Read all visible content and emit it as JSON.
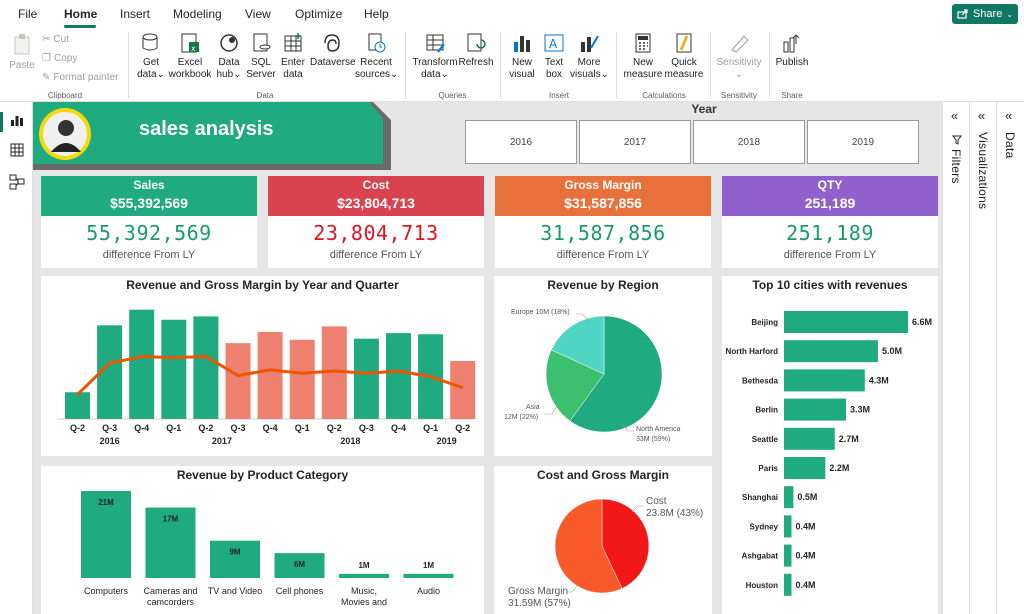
{
  "menu": [
    "File",
    "Home",
    "Insert",
    "Modeling",
    "View",
    "Optimize",
    "Help"
  ],
  "share_label": "Share",
  "ribbon": {
    "clipboard": {
      "paste": "Paste",
      "cut": "Cut",
      "copy": "Copy",
      "format_painter": "Format painter",
      "group": "Clipboard"
    },
    "data": {
      "get_data": [
        "Get",
        "data"
      ],
      "excel": [
        "Excel",
        "workbook"
      ],
      "hub": [
        "Data",
        "hub"
      ],
      "sql": [
        "SQL",
        "Server"
      ],
      "enter": [
        "Enter",
        "data"
      ],
      "dataverse": "Dataverse",
      "recent": [
        "Recent",
        "sources"
      ],
      "group": "Data"
    },
    "queries": {
      "transform": [
        "Transform",
        "data"
      ],
      "refresh": "Refresh",
      "group": "Queries"
    },
    "insert": {
      "new_visual": [
        "New",
        "visual"
      ],
      "text_box": [
        "Text",
        "box"
      ],
      "more_visuals": [
        "More",
        "visuals"
      ],
      "group": "Insert"
    },
    "calculations": {
      "new_measure": [
        "New",
        "measure"
      ],
      "quick_measure": [
        "Quick",
        "measure"
      ],
      "group": "Calculations"
    },
    "sensitivity": {
      "label": "Sensitivity",
      "group": "Sensitivity"
    },
    "share": {
      "publish": "Publish",
      "group": "Share"
    }
  },
  "panes": {
    "filters": "Filters",
    "visualizations": "Visualizations",
    "data": "Data"
  },
  "header": {
    "title": "sales analysis",
    "year_label": "Year",
    "years": [
      "2016",
      "2017",
      "2018",
      "2019"
    ]
  },
  "kpis": [
    {
      "label": "Sales",
      "value": "$55,392,569",
      "big": "55,392,569",
      "sub": "difference From LY",
      "color": "#1faa80",
      "bigcolor": "#1a9a6c"
    },
    {
      "label": "Cost",
      "value": "$23,804,713",
      "big": "23,804,713",
      "sub": "difference From LY",
      "color": "#d9434f",
      "bigcolor": "#e0141e"
    },
    {
      "label": "Gross Margin",
      "value": "$31,587,856",
      "big": "31,587,856",
      "sub": "difference From LY",
      "color": "#e8703a",
      "bigcolor": "#1a9a6c"
    },
    {
      "label": "QTY",
      "value": "251,189",
      "big": "251,189",
      "sub": "difference From LY",
      "color": "#9060cc",
      "bigcolor": "#1a9a6c"
    }
  ],
  "chart_data": [
    {
      "type": "bar",
      "title": "Revenue and Gross Margin by Year and Quarter",
      "categories": [
        "Q-2",
        "Q-3",
        "Q-4",
        "Q-1",
        "Q-2",
        "Q-3",
        "Q-4",
        "Q-1",
        "Q-2",
        "Q-3",
        "Q-4",
        "Q-1",
        "Q-2"
      ],
      "years": [
        {
          "label": "2016",
          "span": 3
        },
        {
          "label": "2017",
          "span": 4
        },
        {
          "label": "2018",
          "span": 4
        },
        {
          "label": "2019",
          "span": 2
        }
      ],
      "series": [
        {
          "values": [
            1.2,
            4.2,
            4.9,
            4.45,
            4.6,
            3.4,
            3.9,
            3.55,
            4.15,
            3.6,
            3.85,
            3.8,
            2.6
          ]
        },
        {
          "values": [
            1.1,
            2.5,
            2.8,
            2.75,
            2.8,
            1.95,
            2.2,
            2.05,
            2.15,
            2.05,
            2.15,
            1.9,
            1.4
          ]
        }
      ],
      "bar_colors": [
        "#1faa80",
        "#1faa80",
        "#1faa80",
        "#1faa80",
        "#1faa80",
        "#ee8070",
        "#ee8070",
        "#ee8070",
        "#ee8070",
        "#1faa80",
        "#1faa80",
        "#1faa80",
        "#ee8070"
      ],
      "line_color": "#ee5500",
      "ylim": [
        0,
        5.2
      ]
    },
    {
      "type": "pie",
      "title": "Revenue by Region",
      "slices": [
        {
          "label": "North America",
          "value": 33,
          "text": "North America 33M (59%)",
          "color": "#1faa80"
        },
        {
          "label": "Asia",
          "value": 12,
          "text": "Asia 12M (22%)",
          "color": "#3cc070"
        },
        {
          "label": "Europe",
          "value": 10,
          "text": "Europe 10M (18%)",
          "color": "#50d4c4"
        }
      ]
    },
    {
      "type": "bar",
      "title": "Top 10 cities with revenues",
      "orientation": "horizontal",
      "categories": [
        "Beijing",
        "North Harford",
        "Bethesda",
        "Berlin",
        "Seattle",
        "Paris",
        "Shanghai",
        "Sydney",
        "Ashgabat",
        "Houston"
      ],
      "values": [
        6.6,
        5.0,
        4.3,
        3.3,
        2.7,
        2.2,
        0.5,
        0.4,
        0.4,
        0.4
      ],
      "labels": [
        "6.6M",
        "5.0M",
        "4.3M",
        "3.3M",
        "2.7M",
        "2.2M",
        "0.5M",
        "0.4M",
        "0.4M",
        "0.4M"
      ],
      "xlim": [
        0,
        6.6
      ]
    },
    {
      "type": "bar",
      "title": "Revenue by Product Category",
      "categories": [
        "Computers",
        "Cameras and camcorders",
        "TV and Video",
        "Cell phones",
        "Music, Movies and Audio B...",
        "Audio"
      ],
      "values": [
        21,
        17,
        9,
        6,
        1,
        1
      ],
      "labels": [
        "21M",
        "17M",
        "9M",
        "6M",
        "1M",
        "1M"
      ],
      "ylim": [
        0,
        21
      ]
    },
    {
      "type": "pie",
      "title": "Cost and Gross Margin",
      "slices": [
        {
          "label": "Cost",
          "value": 23.8,
          "text": "23.8M (43%)",
          "color": "#f21818"
        },
        {
          "label": "Gross Margin",
          "value": 31.59,
          "text": "31.59M (57%)",
          "color": "#f85a2a"
        }
      ]
    }
  ]
}
